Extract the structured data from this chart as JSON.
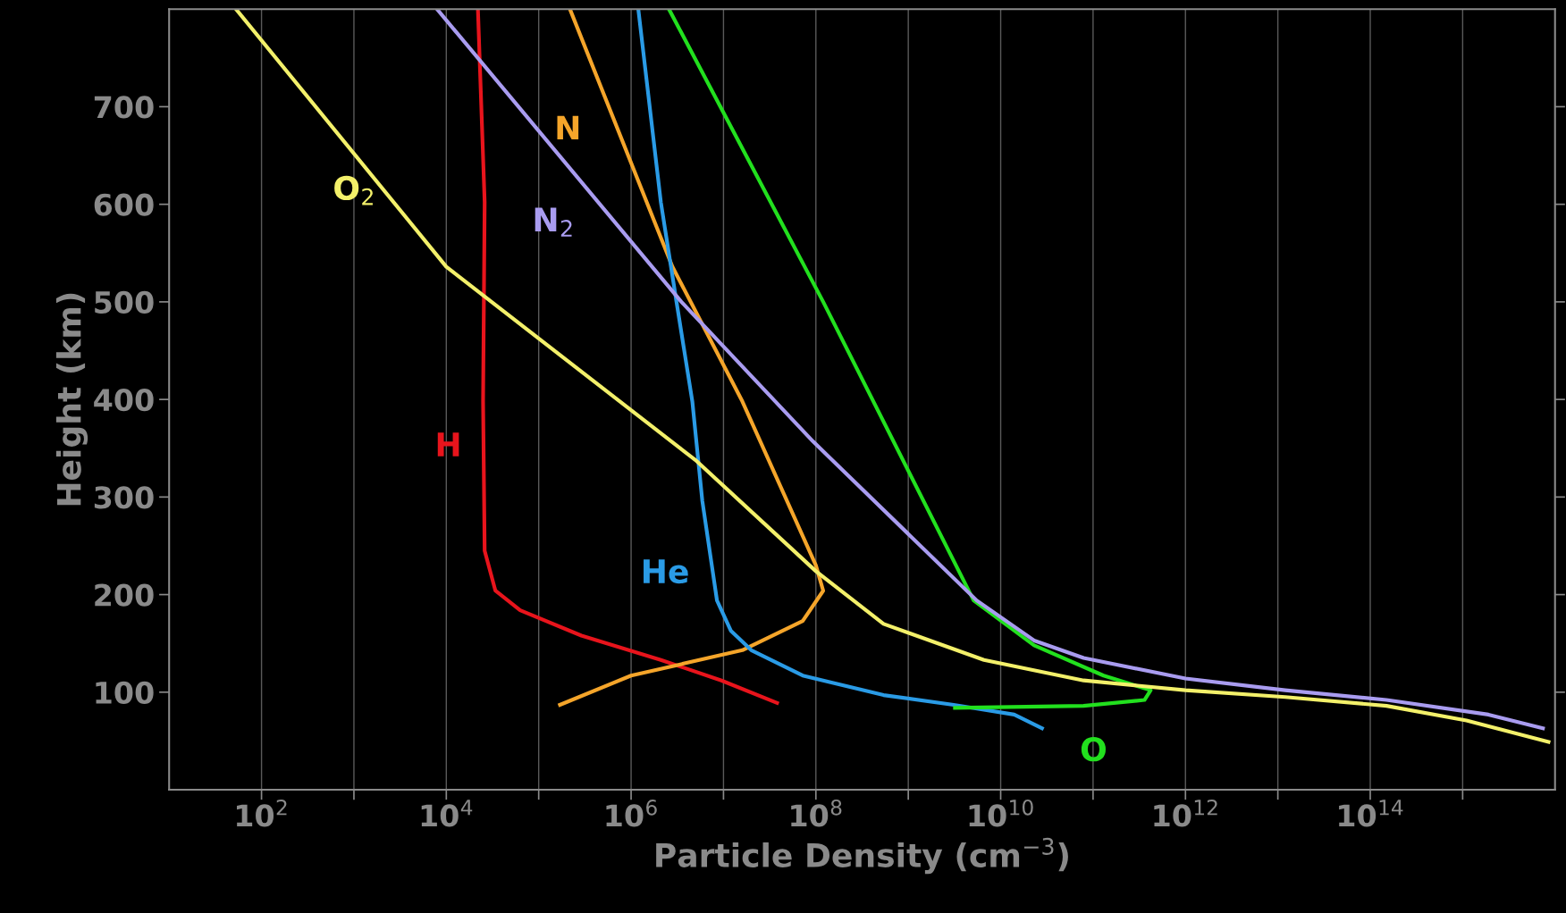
{
  "chart_data": {
    "type": "line",
    "xlabel": "Particle Density (cm$^{−3}$)",
    "ylabel": "Height (km)",
    "log": "x",
    "grid": "x",
    "legend": false,
    "marker": "none",
    "line_style": "solid",
    "xlim": [
      10,
      1e+16
    ],
    "ylim": [
      0,
      800
    ],
    "xticks": [
      {
        "value": 100.0,
        "label": "10$^{2}$"
      },
      {
        "value": 1000.0,
        "label": null
      },
      {
        "value": 10000.0,
        "label": "10$^{4}$"
      },
      {
        "value": 100000.0,
        "label": null
      },
      {
        "value": 1000000.0,
        "label": "10$^{6}$"
      },
      {
        "value": 10000000.0,
        "label": null
      },
      {
        "value": 100000000.0,
        "label": "10$^{8}$"
      },
      {
        "value": 1000000000.0,
        "label": null
      },
      {
        "value": 10000000000.0,
        "label": "10$^{10}$"
      },
      {
        "value": 100000000000.0,
        "label": null
      },
      {
        "value": 1000000000000.0,
        "label": "10$^{12}$"
      },
      {
        "value": 10000000000000.0,
        "label": null
      },
      {
        "value": 100000000000000.0,
        "label": "10$^{14}$"
      },
      {
        "value": 1000000000000000.0,
        "label": null
      }
    ],
    "yticks": [
      100,
      200,
      300,
      400,
      500,
      600,
      700
    ],
    "series": [
      {
        "name": "H",
        "color": "#e8141c",
        "x": [
          22000.0,
          26000.0,
          25000.0,
          26000.0,
          34000.0,
          63000.0,
          290000.0,
          2100000.0,
          9500000.0,
          38000000.0
        ],
        "values": [
          799,
          602,
          398,
          245,
          204,
          184,
          158,
          133,
          112,
          89
        ]
      },
      {
        "name": "N",
        "color": "#f5a52a",
        "x": [
          220000.0,
          2800000.0,
          16000000.0,
          100000000.0,
          120000000.0,
          72000000.0,
          16000000.0,
          1000000.0,
          170000.0
        ],
        "values": [
          799,
          536,
          398,
          230,
          204,
          173,
          143,
          117,
          87
        ]
      },
      {
        "name": "He",
        "color": "#2a9be6",
        "x": [
          1200000.0,
          2100000.0,
          3100000.0,
          4600000.0,
          5900000.0,
          8500000.0,
          12000000.0,
          20000000.0,
          72000000.0,
          540000000.0,
          3100000000.0,
          14000000000.0,
          28000000000.0
        ],
        "values": [
          799,
          602,
          500,
          398,
          296,
          194,
          163,
          143,
          117,
          97,
          87,
          77,
          63
        ]
      },
      {
        "name": "O",
        "color": "#22e01e",
        "x": [
          2600000.0,
          120000000.0,
          5100000000.0,
          23000000000.0,
          130000000000.0,
          420000000000.0,
          360000000000.0,
          79000000000.0,
          3200000000.0
        ],
        "values": [
          799,
          500,
          194,
          148,
          117,
          102,
          92,
          86,
          84
        ]
      },
      {
        "name": "N$_{2}$",
        "color": "#a99cf0",
        "x": [
          8100.0,
          3500000.0,
          93000000.0,
          5500000000.0,
          23000000000.0,
          79000000000.0,
          1000000000000.0,
          12000000000000.0,
          150000000000000.0,
          1900000000000000.0,
          7400000000000000.0
        ],
        "values": [
          799,
          500,
          357,
          194,
          153,
          135,
          114,
          102,
          92,
          77,
          63
        ]
      },
      {
        "name": "O$_{2}$",
        "color": "#f3f06a",
        "x": [
          54,
          10000.0,
          5100000.0,
          100000000.0,
          540000000.0,
          6600000000.0,
          79000000000.0,
          1000000000000.0,
          12000000000000.0,
          150000000000000.0,
          1100000000000000.0,
          8500000000000000.0
        ],
        "values": [
          799,
          536,
          337,
          224,
          170,
          133,
          112,
          102,
          95,
          86,
          71,
          49
        ]
      }
    ]
  }
}
